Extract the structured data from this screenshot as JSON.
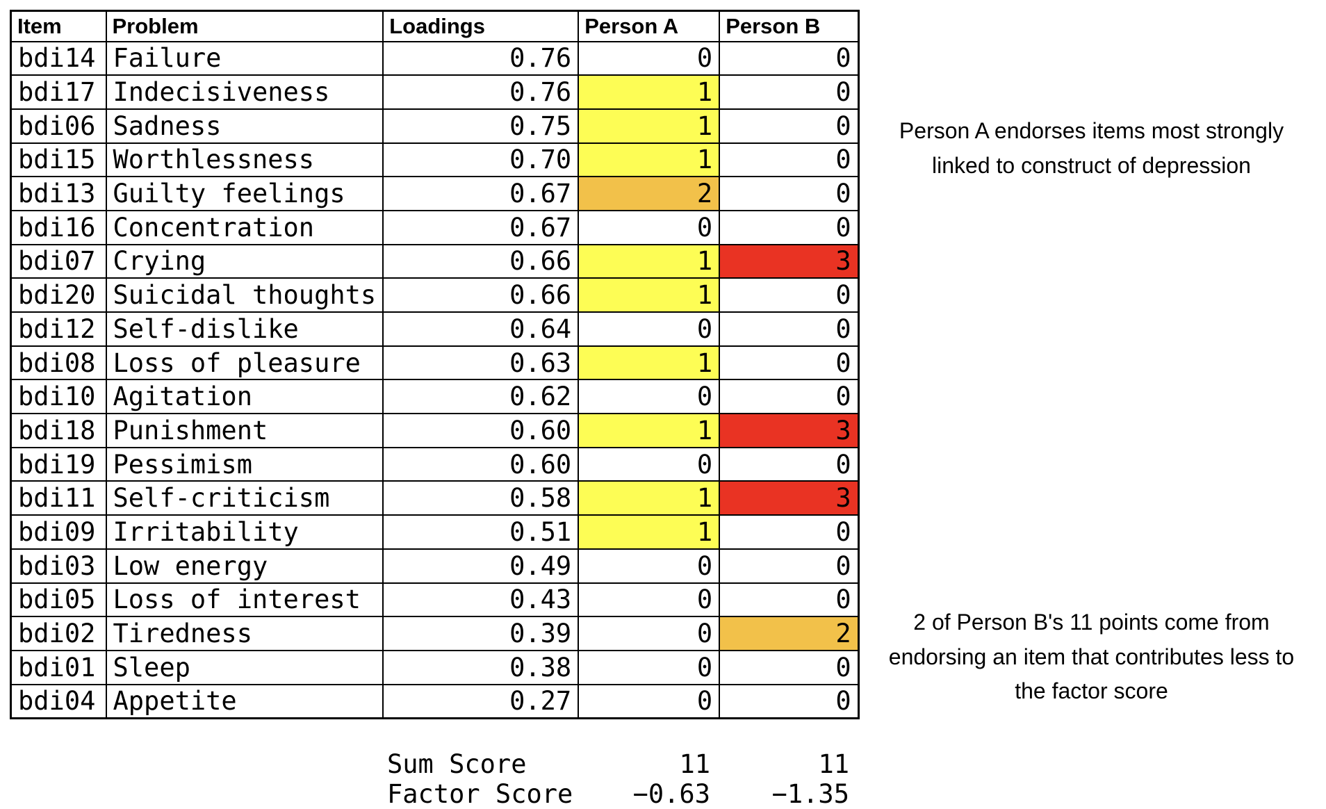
{
  "colors": {
    "yellow": "#FDFD55",
    "orange": "#F2C14A",
    "red": "#E93323",
    "border": "#000000",
    "background": "#FFFFFF",
    "text": "#000000"
  },
  "chart_data": {
    "type": "table",
    "columns": [
      "Item",
      "Problem",
      "Loadings",
      "Person A",
      "Person B"
    ],
    "rows": [
      {
        "item": "bdi14",
        "problem": "Failure",
        "loading": "0.76",
        "person_a": "0",
        "person_b": "0",
        "person_a_highlight": "none",
        "person_b_highlight": "none"
      },
      {
        "item": "bdi17",
        "problem": "Indecisiveness",
        "loading": "0.76",
        "person_a": "1",
        "person_b": "0",
        "person_a_highlight": "yellow",
        "person_b_highlight": "none"
      },
      {
        "item": "bdi06",
        "problem": "Sadness",
        "loading": "0.75",
        "person_a": "1",
        "person_b": "0",
        "person_a_highlight": "yellow",
        "person_b_highlight": "none"
      },
      {
        "item": "bdi15",
        "problem": "Worthlessness",
        "loading": "0.70",
        "person_a": "1",
        "person_b": "0",
        "person_a_highlight": "yellow",
        "person_b_highlight": "none"
      },
      {
        "item": "bdi13",
        "problem": "Guilty feelings",
        "loading": "0.67",
        "person_a": "2",
        "person_b": "0",
        "person_a_highlight": "orange",
        "person_b_highlight": "none"
      },
      {
        "item": "bdi16",
        "problem": "Concentration",
        "loading": "0.67",
        "person_a": "0",
        "person_b": "0",
        "person_a_highlight": "none",
        "person_b_highlight": "none"
      },
      {
        "item": "bdi07",
        "problem": "Crying",
        "loading": "0.66",
        "person_a": "1",
        "person_b": "3",
        "person_a_highlight": "yellow",
        "person_b_highlight": "red"
      },
      {
        "item": "bdi20",
        "problem": "Suicidal thoughts",
        "loading": "0.66",
        "person_a": "1",
        "person_b": "0",
        "person_a_highlight": "yellow",
        "person_b_highlight": "none"
      },
      {
        "item": "bdi12",
        "problem": "Self-dislike",
        "loading": "0.64",
        "person_a": "0",
        "person_b": "0",
        "person_a_highlight": "none",
        "person_b_highlight": "none"
      },
      {
        "item": "bdi08",
        "problem": "Loss of pleasure",
        "loading": "0.63",
        "person_a": "1",
        "person_b": "0",
        "person_a_highlight": "yellow",
        "person_b_highlight": "none"
      },
      {
        "item": "bdi10",
        "problem": "Agitation",
        "loading": "0.62",
        "person_a": "0",
        "person_b": "0",
        "person_a_highlight": "none",
        "person_b_highlight": "none"
      },
      {
        "item": "bdi18",
        "problem": "Punishment",
        "loading": "0.60",
        "person_a": "1",
        "person_b": "3",
        "person_a_highlight": "yellow",
        "person_b_highlight": "red"
      },
      {
        "item": "bdi19",
        "problem": "Pessimism",
        "loading": "0.60",
        "person_a": "0",
        "person_b": "0",
        "person_a_highlight": "none",
        "person_b_highlight": "none"
      },
      {
        "item": "bdi11",
        "problem": "Self-criticism",
        "loading": "0.58",
        "person_a": "1",
        "person_b": "3",
        "person_a_highlight": "yellow",
        "person_b_highlight": "red"
      },
      {
        "item": "bdi09",
        "problem": "Irritability",
        "loading": "0.51",
        "person_a": "1",
        "person_b": "0",
        "person_a_highlight": "yellow",
        "person_b_highlight": "none"
      },
      {
        "item": "bdi03",
        "problem": "Low energy",
        "loading": "0.49",
        "person_a": "0",
        "person_b": "0",
        "person_a_highlight": "none",
        "person_b_highlight": "none"
      },
      {
        "item": "bdi05",
        "problem": "Loss of interest",
        "loading": "0.43",
        "person_a": "0",
        "person_b": "0",
        "person_a_highlight": "none",
        "person_b_highlight": "none"
      },
      {
        "item": "bdi02",
        "problem": "Tiredness",
        "loading": "0.39",
        "person_a": "0",
        "person_b": "2",
        "person_a_highlight": "none",
        "person_b_highlight": "orange"
      },
      {
        "item": "bdi01",
        "problem": "Sleep",
        "loading": "0.38",
        "person_a": "0",
        "person_b": "0",
        "person_a_highlight": "none",
        "person_b_highlight": "none"
      },
      {
        "item": "bdi04",
        "problem": "Appetite",
        "loading": "0.27",
        "person_a": "0",
        "person_b": "0",
        "person_a_highlight": "none",
        "person_b_highlight": "none"
      }
    ],
    "footer": [
      {
        "label": "Sum Score",
        "person_a": "11",
        "person_b": "11"
      },
      {
        "label": "Factor Score",
        "person_a": "−0.63",
        "person_b": "−1.35"
      }
    ]
  },
  "annotations": {
    "person_a": {
      "lines": [
        "Person A endorses items most strongly",
        "linked to construct of depression"
      ]
    },
    "person_b": {
      "lines": [
        "2 of Person B's 11 points come from",
        "endorsing an item that contributes less to",
        "the factor score"
      ]
    }
  }
}
